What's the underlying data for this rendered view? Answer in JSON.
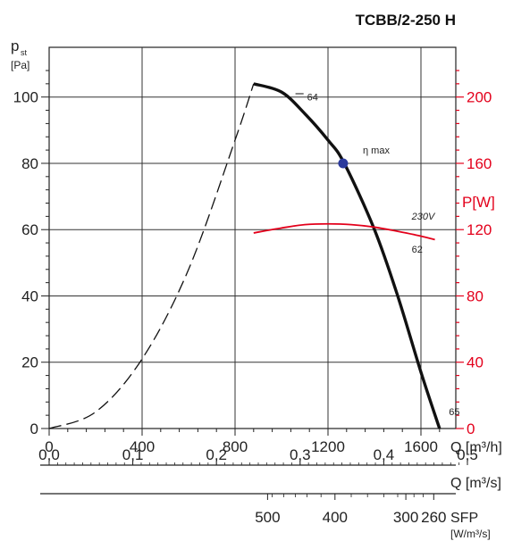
{
  "chart_data": {
    "type": "line",
    "title": "TCBB/2-250 H",
    "y_label": "p",
    "y_label_sub": "st",
    "y_unit": "[Pa]",
    "ylim": [
      0,
      115
    ],
    "y_ticks": [
      0,
      20,
      40,
      60,
      80,
      100
    ],
    "x_label": "Q [m³/h]",
    "xlim": [
      0,
      1750
    ],
    "x_ticks": [
      0,
      400,
      800,
      1200,
      1600
    ],
    "x2_label": "Q [m³/s]",
    "x2_ticks": [
      "0,0",
      "0,1",
      "0,2",
      "0,3",
      "0,4",
      "0,5"
    ],
    "x2_tick_values_m3h": [
      0,
      360,
      720,
      1080,
      1440,
      1800
    ],
    "sfp_label": "SFP",
    "sfp_unit": "[W/m³/s]",
    "sfp_ticks": [
      "500",
      "400",
      "300",
      "260"
    ],
    "sfp_tick_positions_m3h": [
      940,
      1230,
      1535,
      1655
    ],
    "p_label": "P[W]",
    "p_ticks": [
      0,
      40,
      80,
      120,
      160,
      200
    ],
    "p_lim": [
      0,
      230
    ],
    "series": [
      {
        "name": "pressure-unstable",
        "style": "dashed",
        "points": [
          [
            0,
            0
          ],
          [
            200,
            5
          ],
          [
            400,
            21
          ],
          [
            600,
            48
          ],
          [
            800,
            87
          ],
          [
            880,
            104
          ]
        ]
      },
      {
        "name": "pressure",
        "style": "solid",
        "points": [
          [
            880,
            104
          ],
          [
            1000,
            101.5
          ],
          [
            1100,
            95
          ],
          [
            1200,
            87
          ],
          [
            1270,
            80
          ],
          [
            1400,
            60
          ],
          [
            1500,
            40
          ],
          [
            1600,
            17
          ],
          [
            1680,
            0
          ]
        ]
      },
      {
        "name": "power",
        "axis": "P",
        "style": "red",
        "points": [
          [
            880,
            118
          ],
          [
            1000,
            121
          ],
          [
            1100,
            123
          ],
          [
            1200,
            123.5
          ],
          [
            1300,
            123
          ],
          [
            1400,
            121.5
          ],
          [
            1500,
            119
          ],
          [
            1570,
            117
          ],
          [
            1660,
            114
          ]
        ]
      }
    ],
    "annotations": [
      {
        "text": "64",
        "x": 1110,
        "y": 99
      },
      {
        "text": "η max",
        "x": 1350,
        "y": 83
      },
      {
        "text": "62",
        "x": 1560,
        "y": 53
      },
      {
        "text": "65",
        "x": 1720,
        "y": 4
      },
      {
        "text": "230V",
        "x": 1560,
        "y": 126,
        "axis": "P"
      }
    ],
    "eta_max_point": [
      1265,
      80
    ]
  }
}
